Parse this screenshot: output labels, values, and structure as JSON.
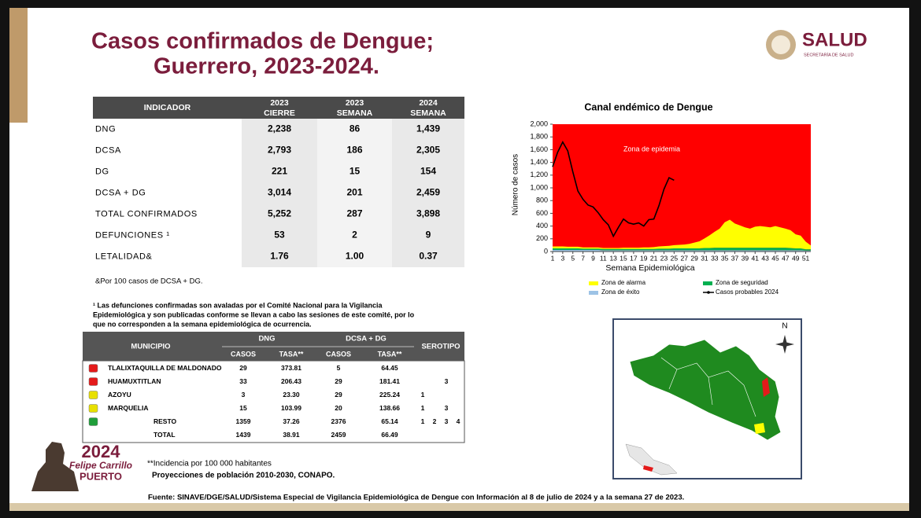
{
  "header": {
    "title_line1": "Casos confirmados de Dengue;",
    "title_line2": "Guerrero, 2023-2024."
  },
  "logo": {
    "name": "SALUD",
    "subtitle": "SECRETARÍA DE SALUD"
  },
  "indicators_table": {
    "columns": [
      [
        "INDICADOR"
      ],
      [
        "2023",
        "CIERRE"
      ],
      [
        "2023",
        "SEMANA"
      ],
      [
        "2024",
        "SEMANA"
      ]
    ],
    "rows": [
      [
        "DNG",
        "2,238",
        "86",
        "1,439"
      ],
      [
        "DCSA",
        "2,793",
        "186",
        "2,305"
      ],
      [
        "DG",
        "221",
        "15",
        "154"
      ],
      [
        "DCSA + DG",
        "3,014",
        "201",
        "2,459"
      ],
      [
        "TOTAL CONFIRMADOS",
        "5,252",
        "287",
        "3,898"
      ],
      [
        "DEFUNCIONES ¹",
        "53",
        "2",
        "9"
      ],
      [
        "LETALIDAD&",
        "1.76",
        "1.00",
        "0.37"
      ]
    ]
  },
  "note": "&Por 100 casos de DCSA + DG.",
  "footnote_lines": [
    "¹ Las defunciones confirmadas son avaladas por el Comité Nacional para la Vigilancia",
    "Epidemiológica y son publicadas conforme se llevan a cabo las sesiones de este comité, por lo",
    "que no corresponden a la semana epidemiológica de ocurrencia."
  ],
  "municipio_table": {
    "header": [
      "MUNICIPIO",
      "DNG",
      "DCSA + DG",
      "SEROTIPO"
    ],
    "subheader": [
      "CASOS",
      "TASA**",
      "CASOS",
      "TASA**"
    ],
    "rows": [
      {
        "color": "#e41a1a",
        "cells": [
          "TLALIXTAQUILLA DE MALDONADO",
          "29",
          "373.81",
          "5",
          "64.45"
        ],
        "serotypes": []
      },
      {
        "color": "#e41a1a",
        "cells": [
          "HUAMUXTITLAN",
          "33",
          "206.43",
          "29",
          "181.41"
        ],
        "serotypes": [
          "3"
        ]
      },
      {
        "color": "#e8e000",
        "cells": [
          "AZOYU",
          "3",
          "23.30",
          "29",
          "225.24"
        ],
        "serotypes": [
          "1"
        ]
      },
      {
        "color": "#e8e000",
        "cells": [
          "MARQUELIA",
          "15",
          "103.99",
          "20",
          "138.66"
        ],
        "serotypes": [
          "1",
          "3"
        ]
      },
      {
        "color": "#1f9e3a",
        "cells": [
          "RESTO",
          "1359",
          "37.26",
          "2376",
          "65.14"
        ],
        "serotypes": [
          "1",
          "2",
          "3",
          "4"
        ]
      },
      {
        "cells": [
          "TOTAL",
          "1439",
          "38.91",
          "2459",
          "66.49"
        ],
        "serotypes": []
      }
    ]
  },
  "chart": {
    "type": "area-line",
    "title": "Canal endémico de Dengue",
    "x_label": "Semana Epidemiológica",
    "y_label": "Número de casos",
    "annotation": "Zona de epidemia",
    "epidemic_color": "#ff0000",
    "xlim": [
      1,
      52
    ],
    "ylim": [
      0,
      2000
    ],
    "xticks": [
      1,
      3,
      5,
      7,
      9,
      11,
      13,
      15,
      17,
      19,
      21,
      23,
      25,
      27,
      29,
      31,
      33,
      35,
      37,
      39,
      41,
      43,
      45,
      47,
      49,
      51
    ],
    "yticks": [
      0,
      200,
      400,
      600,
      800,
      {
        "value": 1000,
        "label": "1,000"
      },
      {
        "value": 1200,
        "label": "1,200"
      },
      {
        "value": 1400,
        "label": "1,400"
      },
      {
        "value": 1600,
        "label": "1,600"
      },
      {
        "value": 1800,
        "label": "1,800"
      },
      {
        "value": 2000,
        "label": "2,000"
      }
    ],
    "x": [
      1,
      2,
      3,
      4,
      5,
      6,
      7,
      8,
      9,
      10,
      11,
      12,
      13,
      14,
      15,
      16,
      17,
      18,
      19,
      20,
      21,
      22,
      23,
      24,
      25,
      26,
      27,
      28,
      29,
      30,
      31,
      32,
      33,
      34,
      35,
      36,
      37,
      38,
      39,
      40,
      41,
      42,
      43,
      44,
      45,
      46,
      47,
      48,
      49,
      50,
      51,
      52
    ],
    "series": [
      {
        "name": "Zona de éxito",
        "color": "#9dc3e6",
        "stacked": true,
        "values": [
          25,
          25,
          25,
          25,
          25,
          25,
          25,
          25,
          25,
          25,
          20,
          20,
          20,
          20,
          20,
          20,
          20,
          20,
          20,
          20,
          20,
          20,
          20,
          20,
          20,
          20,
          20,
          20,
          20,
          20,
          20,
          20,
          20,
          20,
          20,
          20,
          20,
          20,
          20,
          20,
          20,
          20,
          20,
          20,
          20,
          20,
          20,
          20,
          20,
          20,
          15,
          15
        ]
      },
      {
        "name": "Zona de seguridad",
        "color": "#00b050",
        "stacked": true,
        "values": [
          25,
          25,
          25,
          25,
          25,
          25,
          20,
          20,
          20,
          20,
          20,
          20,
          20,
          20,
          20,
          20,
          20,
          20,
          20,
          20,
          20,
          25,
          25,
          25,
          30,
          30,
          30,
          30,
          30,
          30,
          35,
          35,
          40,
          40,
          40,
          40,
          40,
          40,
          40,
          40,
          40,
          40,
          40,
          40,
          40,
          40,
          40,
          35,
          30,
          30,
          20,
          20
        ]
      },
      {
        "name": "Zona de alarma",
        "color": "#ffff00",
        "stacked": true,
        "values": [
          30,
          30,
          30,
          25,
          25,
          25,
          20,
          20,
          20,
          20,
          15,
          15,
          15,
          15,
          20,
          20,
          20,
          20,
          25,
          25,
          30,
          35,
          40,
          45,
          50,
          55,
          60,
          70,
          90,
          110,
          150,
          200,
          250,
          300,
          400,
          440,
          380,
          350,
          320,
          300,
          330,
          340,
          330,
          320,
          340,
          320,
          300,
          280,
          220,
          200,
          120,
          60
        ]
      },
      {
        "name": "Casos probables 2024",
        "color": "#000000",
        "x": [
          1,
          2,
          3,
          4,
          5,
          6,
          7,
          8,
          9,
          10,
          11,
          12,
          13,
          14,
          15,
          16,
          17,
          18,
          19,
          20,
          21,
          22,
          23,
          24,
          25
        ],
        "values": [
          1330,
          1560,
          1720,
          1580,
          1250,
          950,
          820,
          730,
          700,
          610,
          500,
          420,
          240,
          380,
          510,
          450,
          430,
          450,
          400,
          500,
          510,
          720,
          980,
          1160,
          1120
        ]
      }
    ]
  },
  "map": {
    "north": "N"
  },
  "logo_2024": {
    "year": "2024",
    "name": "Felipe Carrillo",
    "surname": "PUERTO"
  },
  "incidence_note": "**Incidencia por 100 000 habitantes",
  "population_note": "Proyecciones de población 2010-2030,  CONAPO.",
  "source": "Fuente: SINAVE/DGE/SALUD/Sistema Especial de Vigilancia Epidemiológica de Dengue con Información al 8 de julio de 2024 y a la semana 27 de 2023."
}
